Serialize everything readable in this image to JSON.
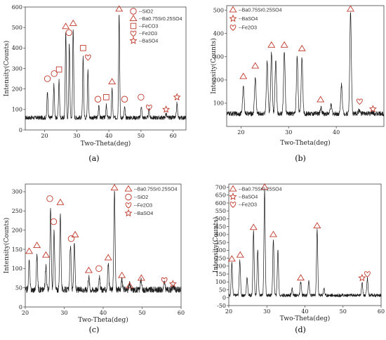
{
  "colors": {
    "curve": "#1a1a1a",
    "marker": "#c0392b",
    "axis": "#444444",
    "plotbg": "#ffffff"
  },
  "chart_data": [
    {
      "type": "line",
      "caption": "(a)",
      "title": "",
      "xlabel": "Two-Theta(deg)",
      "ylabel": "Intensity(Counts)",
      "xlim": [
        14,
        64
      ],
      "ylim": [
        0,
        600
      ],
      "xticks": [
        "20",
        "30",
        "40",
        "50",
        "60"
      ],
      "yticks": [
        "0",
        "100",
        "200",
        "300",
        "400",
        "500",
        "600"
      ],
      "legend": [
        {
          "marker": "circle",
          "label": "SiO2"
        },
        {
          "marker": "triangle",
          "label": "Ba0.75Sr0.25SO4"
        },
        {
          "marker": "square",
          "label": "FeCO3"
        },
        {
          "marker": "heart",
          "label": "Fe2O3"
        },
        {
          "marker": "star",
          "label": "BaSO4"
        }
      ],
      "baseline": 60,
      "noise": 10,
      "peaks": [
        {
          "x": 20.9,
          "y": 190
        },
        {
          "x": 22.9,
          "y": 220
        },
        {
          "x": 24.5,
          "y": 245
        },
        {
          "x": 26.6,
          "y": 480
        },
        {
          "x": 27.7,
          "y": 420
        },
        {
          "x": 28.9,
          "y": 500
        },
        {
          "x": 32.0,
          "y": 360
        },
        {
          "x": 33.5,
          "y": 300
        },
        {
          "x": 36.9,
          "y": 120
        },
        {
          "x": 39.2,
          "y": 120
        },
        {
          "x": 41.0,
          "y": 200
        },
        {
          "x": 43.2,
          "y": 570
        },
        {
          "x": 44.9,
          "y": 110
        },
        {
          "x": 50.1,
          "y": 120
        },
        {
          "x": 52.5,
          "y": 100
        },
        {
          "x": 57.8,
          "y": 80
        },
        {
          "x": 61.2,
          "y": 130
        }
      ],
      "markers": [
        {
          "type": "circle",
          "x": 20.9,
          "y": 250
        },
        {
          "type": "circle",
          "x": 23.0,
          "y": 275
        },
        {
          "type": "square",
          "x": 24.5,
          "y": 295
        },
        {
          "type": "triangle",
          "x": 26.6,
          "y": 505
        },
        {
          "type": "circle",
          "x": 27.6,
          "y": 475
        },
        {
          "type": "triangle",
          "x": 28.9,
          "y": 520
        },
        {
          "type": "square",
          "x": 32.0,
          "y": 400
        },
        {
          "type": "heart",
          "x": 33.5,
          "y": 355
        },
        {
          "type": "circle",
          "x": 36.6,
          "y": 150
        },
        {
          "type": "square",
          "x": 39.2,
          "y": 160
        },
        {
          "type": "triangle",
          "x": 41.0,
          "y": 235
        },
        {
          "type": "triangle",
          "x": 43.2,
          "y": 590
        },
        {
          "type": "circle",
          "x": 44.9,
          "y": 150
        },
        {
          "type": "circle",
          "x": 50.0,
          "y": 160
        },
        {
          "type": "heart",
          "x": 52.5,
          "y": 110
        },
        {
          "type": "star",
          "x": 57.8,
          "y": 100
        },
        {
          "type": "star",
          "x": 61.2,
          "y": 160
        }
      ]
    },
    {
      "type": "line",
      "caption": "(b)",
      "title": "",
      "xlabel": "Two-Theta(deg)",
      "ylabel": "Intensity(Counts)",
      "xlim": [
        17,
        50
      ],
      "ylim": [
        0,
        520
      ],
      "xticks": [
        "20",
        "30",
        "40"
      ],
      "yticks": [
        "100",
        "200",
        "300",
        "400",
        "500"
      ],
      "legend": [
        {
          "marker": "triangle",
          "label": "Ba0.75Sr0.25SO4"
        },
        {
          "marker": "star",
          "label": "BaSO4"
        },
        {
          "marker": "heart",
          "label": "Fe2O3"
        }
      ],
      "baseline": 55,
      "noise": 10,
      "peaks": [
        {
          "x": 20.5,
          "y": 170
        },
        {
          "x": 23.0,
          "y": 210
        },
        {
          "x": 25.5,
          "y": 280
        },
        {
          "x": 26.4,
          "y": 320
        },
        {
          "x": 27.3,
          "y": 280
        },
        {
          "x": 29.1,
          "y": 320
        },
        {
          "x": 31.8,
          "y": 300
        },
        {
          "x": 32.8,
          "y": 300
        },
        {
          "x": 36.8,
          "y": 80
        },
        {
          "x": 38.9,
          "y": 90
        },
        {
          "x": 41.1,
          "y": 180
        },
        {
          "x": 43.0,
          "y": 490
        },
        {
          "x": 44.8,
          "y": 70
        },
        {
          "x": 47.5,
          "y": 60
        }
      ],
      "markers": [
        {
          "type": "triangle",
          "x": 20.5,
          "y": 215
        },
        {
          "type": "triangle",
          "x": 23.0,
          "y": 260
        },
        {
          "type": "triangle",
          "x": 26.4,
          "y": 350
        },
        {
          "type": "triangle",
          "x": 29.1,
          "y": 350
        },
        {
          "type": "triangle",
          "x": 32.8,
          "y": 335
        },
        {
          "type": "triangle",
          "x": 36.7,
          "y": 115
        },
        {
          "type": "triangle",
          "x": 43.0,
          "y": 505
        },
        {
          "type": "heart",
          "x": 44.9,
          "y": 108
        },
        {
          "type": "star",
          "x": 47.7,
          "y": 75
        }
      ]
    },
    {
      "type": "line",
      "caption": "(c)",
      "title": "",
      "xlabel": "Two-Theta(deg)",
      "ylabel": "Intensity(Counts)",
      "xlim": [
        20,
        60
      ],
      "ylim": [
        0,
        320
      ],
      "xticks": [
        "20",
        "30",
        "40",
        "50",
        "60"
      ],
      "yticks": [
        "0",
        "50",
        "100",
        "150",
        "200",
        "250",
        "300"
      ],
      "legend": [
        {
          "marker": "triangle",
          "label": "Ba0.75Sr0.25SO4"
        },
        {
          "marker": "circle",
          "label": "SiO2"
        },
        {
          "marker": "heart",
          "label": "Fe2O3"
        },
        {
          "marker": "star",
          "label": "BaSO4"
        }
      ],
      "baseline": 45,
      "noise": 8,
      "peaks": [
        {
          "x": 21.0,
          "y": 120
        },
        {
          "x": 23.0,
          "y": 135
        },
        {
          "x": 25.3,
          "y": 110
        },
        {
          "x": 26.5,
          "y": 255
        },
        {
          "x": 27.4,
          "y": 195
        },
        {
          "x": 29.0,
          "y": 245
        },
        {
          "x": 31.6,
          "y": 160
        },
        {
          "x": 32.6,
          "y": 165
        },
        {
          "x": 36.3,
          "y": 80
        },
        {
          "x": 39.0,
          "y": 80
        },
        {
          "x": 41.3,
          "y": 110
        },
        {
          "x": 42.9,
          "y": 300
        },
        {
          "x": 44.8,
          "y": 70
        },
        {
          "x": 46.8,
          "y": 60
        },
        {
          "x": 49.7,
          "y": 70
        },
        {
          "x": 55.7,
          "y": 65
        },
        {
          "x": 58.0,
          "y": 55
        }
      ],
      "markers": [
        {
          "type": "triangle",
          "x": 21.0,
          "y": 145
        },
        {
          "type": "triangle",
          "x": 23.0,
          "y": 160
        },
        {
          "type": "triangle",
          "x": 25.3,
          "y": 135
        },
        {
          "type": "circle",
          "x": 26.3,
          "y": 282
        },
        {
          "type": "circle",
          "x": 27.3,
          "y": 222
        },
        {
          "type": "triangle",
          "x": 29.0,
          "y": 272
        },
        {
          "type": "circle",
          "x": 31.8,
          "y": 178
        },
        {
          "type": "triangle",
          "x": 32.8,
          "y": 188
        },
        {
          "type": "triangle",
          "x": 36.3,
          "y": 95
        },
        {
          "type": "circle",
          "x": 38.9,
          "y": 100
        },
        {
          "type": "triangle",
          "x": 41.3,
          "y": 128
        },
        {
          "type": "triangle",
          "x": 42.9,
          "y": 310
        },
        {
          "type": "triangle",
          "x": 44.8,
          "y": 82
        },
        {
          "type": "triangle",
          "x": 46.8,
          "y": 55
        },
        {
          "type": "triangle",
          "x": 49.8,
          "y": 75
        },
        {
          "type": "heart",
          "x": 55.7,
          "y": 70
        },
        {
          "type": "star",
          "x": 57.9,
          "y": 60
        }
      ]
    },
    {
      "type": "line",
      "caption": "(d)",
      "title": "",
      "xlabel": "Two-Theta(deg)",
      "ylabel": "Intensity(Counts)",
      "xlim": [
        20,
        60
      ],
      "ylim": [
        -50,
        720
      ],
      "xticks": [
        "20",
        "30",
        "40",
        "50",
        "60"
      ],
      "yticks": [
        "-50",
        "0",
        "50",
        "100",
        "150",
        "200",
        "250",
        "300",
        "350",
        "400",
        "450",
        "500",
        "550",
        "600",
        "650",
        "700"
      ],
      "legend": [
        {
          "marker": "triangle",
          "label": "Ba0.75Sr0.25SO4"
        },
        {
          "marker": "star",
          "label": "BaSO4"
        },
        {
          "marker": "heart",
          "label": "Fe2O3"
        }
      ],
      "baseline": 15,
      "noise": 10,
      "peaks": [
        {
          "x": 20.8,
          "y": 220
        },
        {
          "x": 22.9,
          "y": 240
        },
        {
          "x": 24.8,
          "y": 130
        },
        {
          "x": 26.5,
          "y": 420
        },
        {
          "x": 27.6,
          "y": 300
        },
        {
          "x": 29.4,
          "y": 680
        },
        {
          "x": 31.7,
          "y": 370
        },
        {
          "x": 32.9,
          "y": 300
        },
        {
          "x": 36.6,
          "y": 60
        },
        {
          "x": 38.9,
          "y": 100
        },
        {
          "x": 41.0,
          "y": 110
        },
        {
          "x": 43.2,
          "y": 430
        },
        {
          "x": 45.0,
          "y": 60
        },
        {
          "x": 55.0,
          "y": 100
        },
        {
          "x": 56.4,
          "y": 120
        }
      ],
      "markers": [
        {
          "type": "triangle",
          "x": 20.8,
          "y": 245
        },
        {
          "type": "triangle",
          "x": 23.0,
          "y": 270
        },
        {
          "type": "triangle",
          "x": 26.5,
          "y": 445
        },
        {
          "type": "triangle",
          "x": 29.4,
          "y": 700
        },
        {
          "type": "triangle",
          "x": 31.7,
          "y": 400
        },
        {
          "type": "triangle",
          "x": 38.9,
          "y": 125
        },
        {
          "type": "triangle",
          "x": 43.2,
          "y": 455
        },
        {
          "type": "star",
          "x": 55.0,
          "y": 125
        },
        {
          "type": "heart",
          "x": 56.4,
          "y": 150
        }
      ]
    }
  ]
}
